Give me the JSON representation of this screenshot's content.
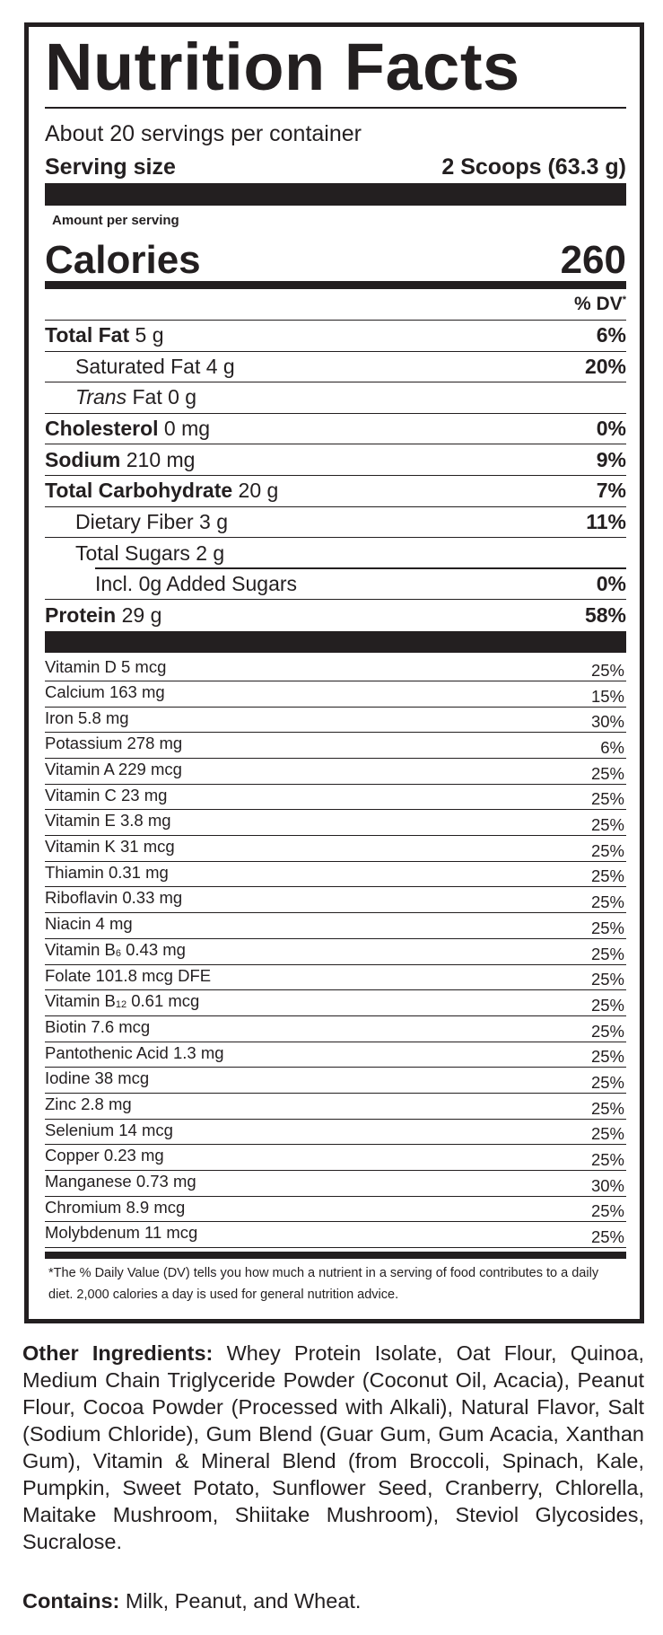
{
  "title": "Nutrition Facts",
  "servings_per_container": "About 20 servings per container",
  "serving_size": {
    "label": "Serving size",
    "value": "2 Scoops (63.3 g)"
  },
  "amount_per_serving": "Amount per serving",
  "calories": {
    "label": "Calories",
    "value": "260"
  },
  "dv_header": "% DV",
  "dv_asterisk": "*",
  "nutrients": [
    {
      "name": "Total Fat",
      "amount": "5 g",
      "dv": "6%"
    },
    {
      "name": "Saturated Fat",
      "amount": "4 g",
      "dv": "20%"
    },
    {
      "name": "Trans",
      "name_rest": "Fat",
      "amount": "0 g",
      "dv": ""
    },
    {
      "name": "Cholesterol",
      "amount": "0 mg",
      "dv": "0%"
    },
    {
      "name": "Sodium",
      "amount": "210 mg",
      "dv": "9%"
    },
    {
      "name": "Total Carbohydrate",
      "amount": "20 g",
      "dv": "7%"
    },
    {
      "name": "Dietary Fiber",
      "amount": "3 g",
      "dv": "11%"
    },
    {
      "name": "Total Sugars",
      "amount": "2 g",
      "dv": ""
    },
    {
      "name": "Incl. 0g Added Sugars",
      "amount": "",
      "dv": "0%"
    },
    {
      "name": "Protein",
      "amount": "29 g",
      "dv": "58%"
    }
  ],
  "vitamins": [
    {
      "label": "Vitamin D 5 mcg",
      "dv": "25%"
    },
    {
      "label": "Calcium 163 mg",
      "dv": "15%"
    },
    {
      "label": "Iron 5.8 mg",
      "dv": "30%"
    },
    {
      "label": "Potassium 278 mg",
      "dv": "6%"
    },
    {
      "label": "Vitamin A 229 mcg",
      "dv": "25%"
    },
    {
      "label": "Vitamin C 23 mg",
      "dv": "25%"
    },
    {
      "label": "Vitamin E 3.8 mg",
      "dv": "25%"
    },
    {
      "label": "Vitamin K 31 mcg",
      "dv": "25%"
    },
    {
      "label": "Thiamin 0.31 mg",
      "dv": "25%"
    },
    {
      "label": "Riboflavin 0.33 mg",
      "dv": "25%"
    },
    {
      "label": "Niacin 4 mg",
      "dv": "25%"
    },
    {
      "label": "Vitamin B",
      "sub": "6",
      "rest": " 0.43 mg",
      "dv": "25%"
    },
    {
      "label": "Folate 101.8 mcg DFE",
      "dv": "25%"
    },
    {
      "label": "Vitamin B",
      "sub": "12",
      "rest": " 0.61 mcg",
      "dv": "25%"
    },
    {
      "label": "Biotin 7.6 mcg",
      "dv": "25%"
    },
    {
      "label": "Pantothenic Acid 1.3 mg",
      "dv": "25%"
    },
    {
      "label": "Iodine 38 mcg",
      "dv": "25%"
    },
    {
      "label": "Zinc 2.8 mg",
      "dv": "25%"
    },
    {
      "label": "Selenium 14 mcg",
      "dv": "25%"
    },
    {
      "label": "Copper 0.23 mg",
      "dv": "25%"
    },
    {
      "label": "Manganese 0.73 mg",
      "dv": "30%"
    },
    {
      "label": "Chromium 8.9 mcg",
      "dv": "25%"
    },
    {
      "label": "Molybdenum 11 mcg",
      "dv": "25%"
    }
  ],
  "footnote": "*The % Daily Value (DV) tells you how much a nutrient in a serving of food contributes to a daily diet. 2,000 calories a day is used for general nutrition advice.",
  "other_ingredients": {
    "label": "Other Ingredients:",
    "text": "Whey Protein Isolate, Oat Flour, Quinoa, Medium Chain Triglyceride Powder (Coconut Oil, Acacia), Peanut Flour, Cocoa Powder (Processed with Alkali), Natural Flavor, Salt (Sodium Chloride), Gum Blend (Guar Gum, Gum Acacia, Xanthan Gum), Vitamin & Mineral Blend (from Broccoli, Spinach, Kale, Pumpkin, Sweet Potato, Sunflower Seed, Cranberry, Chlorella, Maitake Mushroom, Shiitake Mushroom), Steviol Glycosides, Sucralose."
  },
  "contains": {
    "label": "Contains:",
    "text": "Milk, Peanut, and Wheat."
  }
}
